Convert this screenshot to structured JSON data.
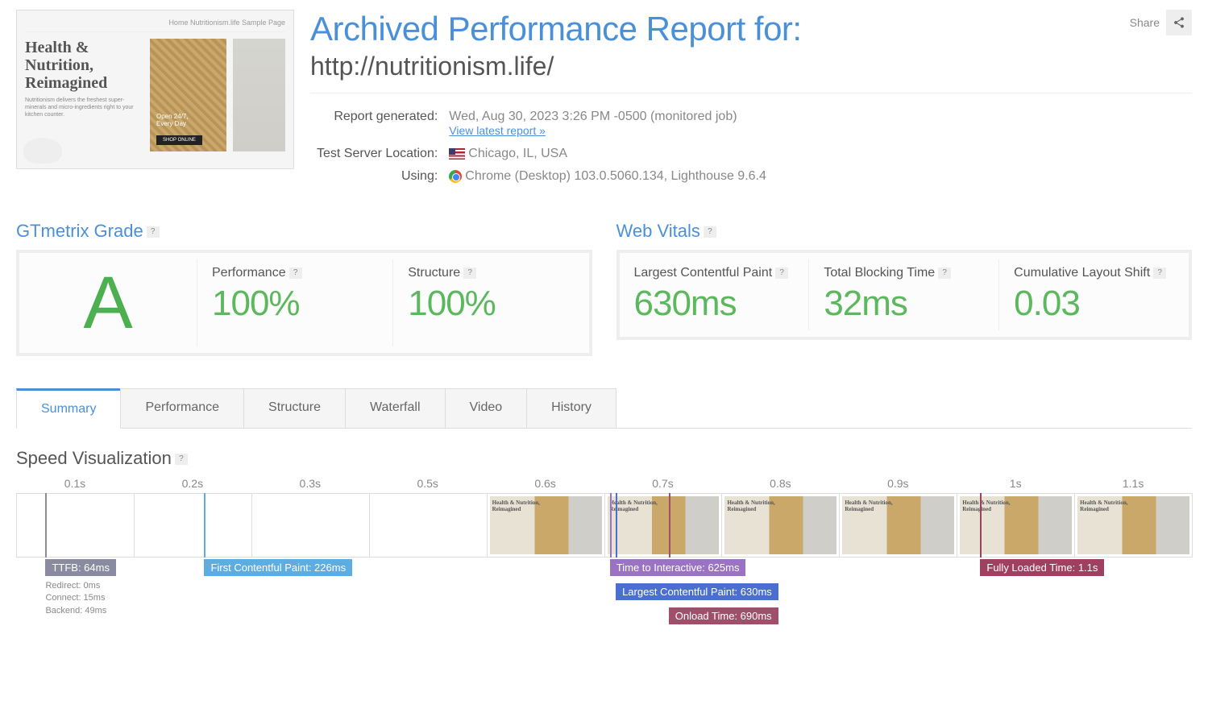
{
  "share": {
    "label": "Share"
  },
  "thumbnail": {
    "nav": "Home    Nutritionism.life    Sample Page",
    "title_l1": "Health &",
    "title_l2": "Nutrition,",
    "title_l3": "Reimagined",
    "subtitle": "Nutritionism delivers the freshest super-minerals and micro-ingredients right to your kitchen counter.",
    "cta": "SHOP ONLINE"
  },
  "header": {
    "title": "Archived Performance Report for:",
    "url": "http://nutritionism.life/"
  },
  "meta": {
    "generated_label": "Report generated:",
    "generated_value": "Wed, Aug 30, 2023 3:26 PM -0500 (monitored job)",
    "latest_link": "View latest report »",
    "location_label": "Test Server Location:",
    "location_value": "Chicago, IL, USA",
    "using_label": "Using:",
    "using_value": "Chrome (Desktop) 103.0.5060.134, Lighthouse 9.6.4"
  },
  "grade": {
    "section_title": "GTmetrix Grade",
    "letter": "A",
    "performance_label": "Performance",
    "performance_value": "100%",
    "structure_label": "Structure",
    "structure_value": "100%"
  },
  "vitals": {
    "section_title": "Web Vitals",
    "lcp_label": "Largest Contentful Paint",
    "lcp_value": "630ms",
    "tbt_label": "Total Blocking Time",
    "tbt_value": "32ms",
    "cls_label": "Cumulative Layout Shift",
    "cls_value": "0.03"
  },
  "tabs": {
    "summary": "Summary",
    "performance": "Performance",
    "structure": "Structure",
    "waterfall": "Waterfall",
    "video": "Video",
    "history": "History"
  },
  "speed": {
    "title": "Speed Visualization",
    "ticks": [
      "0.1s",
      "0.2s",
      "0.3s",
      "0.5s",
      "0.6s",
      "0.7s",
      "0.8s",
      "0.9s",
      "1s",
      "1.1s"
    ],
    "frames_loaded": [
      false,
      false,
      false,
      false,
      true,
      true,
      true,
      true,
      true,
      true
    ],
    "markers": {
      "ttfb": {
        "label": "TTFB: 64ms",
        "color": "#8a8aa0",
        "pos_pct": 2.5,
        "level": 0,
        "sub": "Redirect: 0ms\nConnect: 15ms\nBackend: 49ms"
      },
      "fcp": {
        "label": "First Contentful Paint: 226ms",
        "color": "#5dade2",
        "pos_pct": 16,
        "level": 0
      },
      "tti": {
        "label": "Time to Interactive: 625ms",
        "color": "#9b73c4",
        "pos_pct": 50.5,
        "level": 0
      },
      "lcp": {
        "label": "Largest Contentful Paint: 630ms",
        "color": "#4a6fd0",
        "pos_pct": 51,
        "level": 1
      },
      "onload": {
        "label": "Onload Time: 690ms",
        "color": "#a04f6a",
        "pos_pct": 55.5,
        "level": 2
      },
      "fully": {
        "label": "Fully Loaded Time: 1.1s",
        "color": "#a04060",
        "pos_pct": 82,
        "level": 0
      }
    }
  },
  "colors": {
    "accent": "#4a90d9",
    "green": "#5cb85c"
  }
}
